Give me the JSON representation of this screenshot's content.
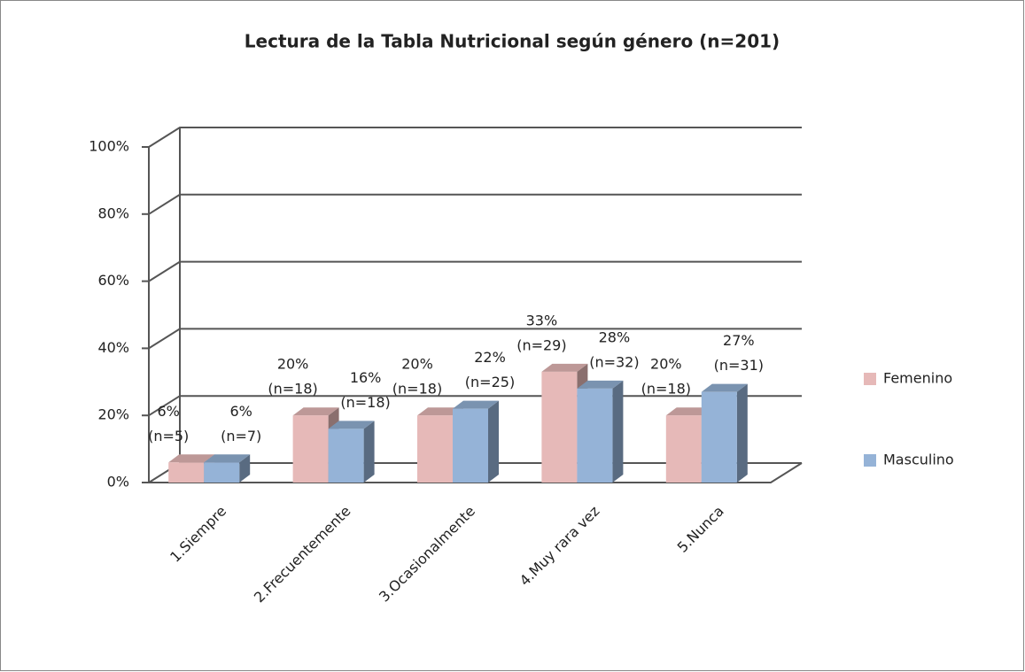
{
  "chart_data": {
    "type": "bar3d",
    "title": "Lectura de la Tabla Nutricional según género (n=201)",
    "categories": [
      "1.Siempre",
      "2.Frecuentemente",
      "3.Ocasionalmente",
      "4.Muy rara vez",
      "5.Nunca"
    ],
    "series": [
      {
        "name": "Femenino",
        "color": "#e6b9b8",
        "values": [
          6,
          20,
          20,
          33,
          20
        ],
        "value_labels": [
          "6%",
          "20%",
          "20%",
          "33%",
          "20%"
        ],
        "count_labels": [
          "(n=5)",
          "(n=18)",
          "(n=18)",
          "(n=29)",
          "(n=18)"
        ]
      },
      {
        "name": "Masculino",
        "color": "#95b3d7",
        "values": [
          6,
          16,
          22,
          28,
          27
        ],
        "value_labels": [
          "6%",
          "16%",
          "22%",
          "28%",
          "27%"
        ],
        "count_labels": [
          "(n=7)",
          "(n=18)",
          "(n=25)",
          "(n=32)",
          "(n=31)"
        ]
      }
    ],
    "ylim": [
      0,
      100
    ],
    "yticks": [
      {
        "value": 0,
        "label": "0%"
      },
      {
        "value": 20,
        "label": "20%"
      },
      {
        "value": 40,
        "label": "40%"
      },
      {
        "value": 60,
        "label": "60%"
      },
      {
        "value": 80,
        "label": "80%"
      },
      {
        "value": 100,
        "label": "100%"
      }
    ],
    "grid": true,
    "legend": "right"
  }
}
